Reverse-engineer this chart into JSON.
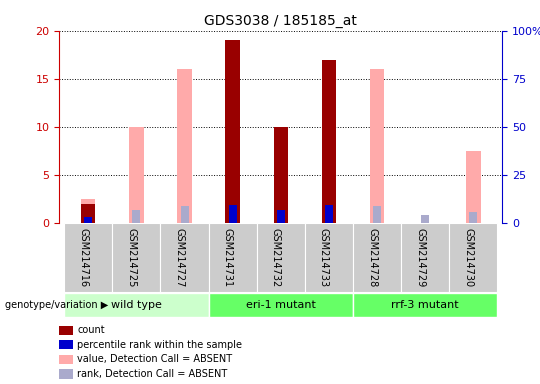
{
  "title": "GDS3038 / 185185_at",
  "samples": [
    "GSM214716",
    "GSM214725",
    "GSM214727",
    "GSM214731",
    "GSM214732",
    "GSM214733",
    "GSM214728",
    "GSM214729",
    "GSM214730"
  ],
  "count": [
    2.0,
    null,
    null,
    19.0,
    10.0,
    17.0,
    null,
    null,
    null
  ],
  "percentile_rank": [
    3.0,
    null,
    null,
    9.0,
    6.5,
    9.0,
    null,
    null,
    null
  ],
  "value_absent": [
    2.5,
    10.0,
    16.0,
    null,
    null,
    null,
    16.0,
    null,
    7.5
  ],
  "rank_absent": [
    3.0,
    6.5,
    8.5,
    null,
    null,
    null,
    8.5,
    4.0,
    5.5
  ],
  "ylim_left": [
    0,
    20
  ],
  "ylim_right": [
    0,
    100
  ],
  "yticks_left": [
    0,
    5,
    10,
    15,
    20
  ],
  "yticks_right": [
    0,
    25,
    50,
    75,
    100
  ],
  "yticklabels_right": [
    "0",
    "25",
    "50",
    "75",
    "100%"
  ],
  "left_axis_color": "#cc0000",
  "right_axis_color": "#0000cc",
  "color_count": "#990000",
  "color_rank": "#0000cc",
  "color_value_absent": "#ffaaaa",
  "color_rank_absent": "#aaaacc",
  "bar_width": 0.3,
  "groups": [
    {
      "start": 0,
      "end": 2,
      "label": "wild type",
      "color": "#ccffcc"
    },
    {
      "start": 3,
      "end": 5,
      "label": "eri-1 mutant",
      "color": "#66ff66"
    },
    {
      "start": 6,
      "end": 8,
      "label": "rrf-3 mutant",
      "color": "#66ff66"
    }
  ],
  "legend_items": [
    {
      "color": "#990000",
      "label": "count"
    },
    {
      "color": "#0000cc",
      "label": "percentile rank within the sample"
    },
    {
      "color": "#ffaaaa",
      "label": "value, Detection Call = ABSENT"
    },
    {
      "color": "#aaaacc",
      "label": "rank, Detection Call = ABSENT"
    }
  ],
  "genotype_label": "genotype/variation",
  "sample_bg_color": "#cccccc",
  "plot_bg_color": "#ffffff"
}
